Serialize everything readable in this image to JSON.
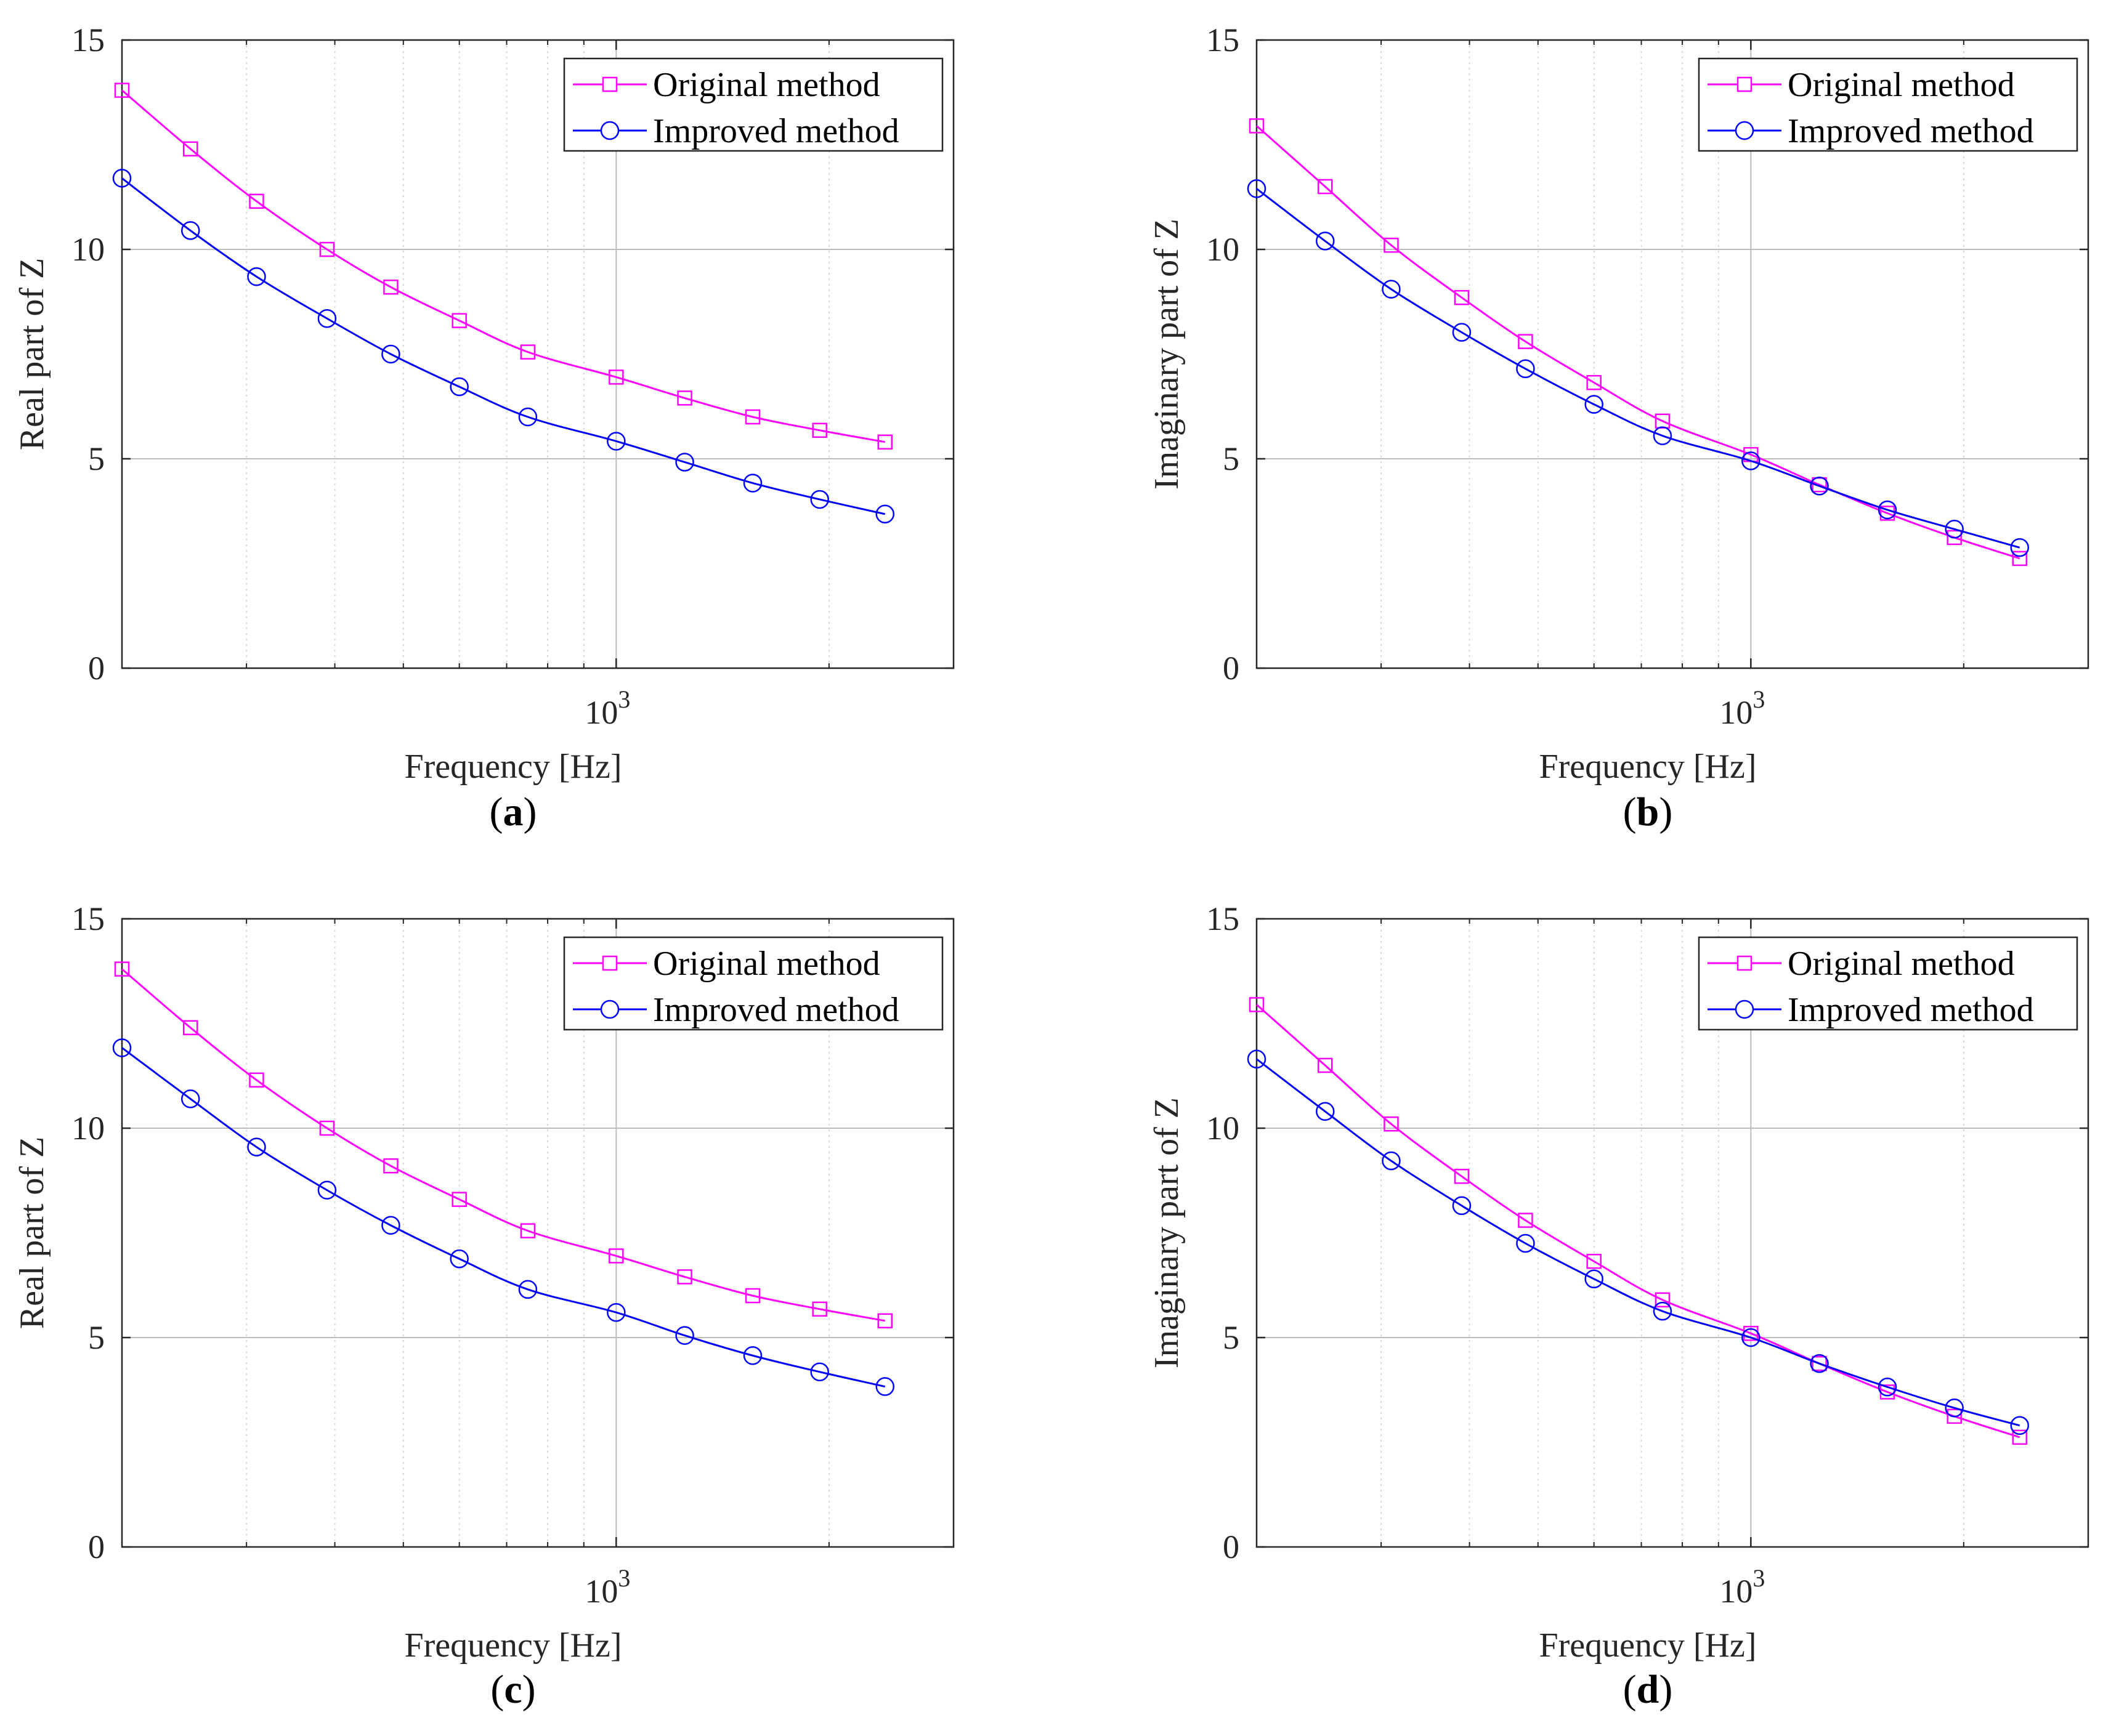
{
  "chart_data": [
    {
      "id": "a",
      "type": "line",
      "panel_label": "(a)",
      "panel_letter": "a",
      "xlabel": "Frequency [Hz]",
      "ylabel": "Real part of Z",
      "xscale": "log",
      "xlim": [
        200,
        3000
      ],
      "ylim": [
        0,
        15
      ],
      "yticks": [
        "0",
        "5",
        "10",
        "15"
      ],
      "xtick_base": "10",
      "xtick_exp": "3",
      "grid": true,
      "legend_position": "top-right",
      "x": [
        200,
        250,
        310,
        390,
        480,
        600,
        750,
        1000,
        1250,
        1560,
        1940,
        2400
      ],
      "series": [
        {
          "name": "Original method",
          "marker": "square",
          "color": "#ff00ff",
          "values": [
            13.8,
            12.4,
            11.15,
            10.0,
            9.1,
            8.3,
            7.55,
            6.95,
            6.45,
            6.0,
            5.68,
            5.4
          ]
        },
        {
          "name": "Improved method",
          "marker": "circle",
          "color": "#0000ff",
          "values": [
            11.7,
            10.45,
            9.35,
            8.35,
            7.5,
            6.72,
            6.0,
            5.42,
            4.92,
            4.42,
            4.03,
            3.68
          ]
        }
      ]
    },
    {
      "id": "b",
      "type": "line",
      "panel_label": "(b)",
      "panel_letter": "b",
      "xlabel": "Frequency [Hz]",
      "ylabel": "Imaginary part of Z",
      "xscale": "log",
      "xlim": [
        200,
        3000
      ],
      "ylim": [
        0,
        15
      ],
      "yticks": [
        "0",
        "5",
        "10",
        "15"
      ],
      "xtick_base": "10",
      "xtick_exp": "3",
      "grid": true,
      "legend_position": "top-right",
      "x": [
        200,
        250,
        310,
        390,
        480,
        600,
        750,
        1000,
        1250,
        1560,
        1940,
        2400
      ],
      "series": [
        {
          "name": "Original method",
          "marker": "square",
          "color": "#ff00ff",
          "values": [
            12.95,
            11.5,
            10.1,
            8.85,
            7.8,
            6.82,
            5.9,
            5.1,
            4.38,
            3.7,
            3.12,
            2.62
          ]
        },
        {
          "name": "Improved method",
          "marker": "circle",
          "color": "#0000ff",
          "values": [
            11.45,
            10.2,
            9.05,
            8.02,
            7.15,
            6.3,
            5.55,
            4.95,
            4.35,
            3.78,
            3.32,
            2.88
          ]
        }
      ]
    },
    {
      "id": "c",
      "type": "line",
      "panel_label": "(c)",
      "panel_letter": "c",
      "xlabel": "Frequency [Hz]",
      "ylabel": "Real part of Z",
      "xscale": "log",
      "xlim": [
        200,
        3000
      ],
      "ylim": [
        0,
        15
      ],
      "yticks": [
        "0",
        "5",
        "10",
        "15"
      ],
      "xtick_base": "10",
      "xtick_exp": "3",
      "grid": true,
      "legend_position": "top-right",
      "x": [
        200,
        250,
        310,
        390,
        480,
        600,
        750,
        1000,
        1250,
        1560,
        1940,
        2400
      ],
      "series": [
        {
          "name": "Original method",
          "marker": "square",
          "color": "#ff00ff",
          "values": [
            13.8,
            12.4,
            11.15,
            10.0,
            9.1,
            8.3,
            7.55,
            6.95,
            6.45,
            6.0,
            5.68,
            5.4
          ]
        },
        {
          "name": "Improved method",
          "marker": "circle",
          "color": "#0000ff",
          "values": [
            11.92,
            10.7,
            9.55,
            8.52,
            7.68,
            6.88,
            6.15,
            5.6,
            5.05,
            4.57,
            4.18,
            3.83
          ]
        }
      ]
    },
    {
      "id": "d",
      "type": "line",
      "panel_label": "(d)",
      "panel_letter": "d",
      "xlabel": "Frequency [Hz]",
      "ylabel": "Imaginary part of Z",
      "xscale": "log",
      "xlim": [
        200,
        3000
      ],
      "ylim": [
        0,
        15
      ],
      "yticks": [
        "0",
        "5",
        "10",
        "15"
      ],
      "xtick_base": "10",
      "xtick_exp": "3",
      "grid": true,
      "legend_position": "top-right",
      "x": [
        200,
        250,
        310,
        390,
        480,
        600,
        750,
        1000,
        1250,
        1560,
        1940,
        2400
      ],
      "series": [
        {
          "name": "Original method",
          "marker": "square",
          "color": "#ff00ff",
          "values": [
            12.95,
            11.5,
            10.1,
            8.85,
            7.8,
            6.82,
            5.9,
            5.1,
            4.38,
            3.7,
            3.12,
            2.62
          ]
        },
        {
          "name": "Improved method",
          "marker": "circle",
          "color": "#0000ff",
          "values": [
            11.65,
            10.4,
            9.22,
            8.15,
            7.25,
            6.4,
            5.63,
            5.0,
            4.38,
            3.82,
            3.32,
            2.9
          ]
        }
      ]
    }
  ]
}
